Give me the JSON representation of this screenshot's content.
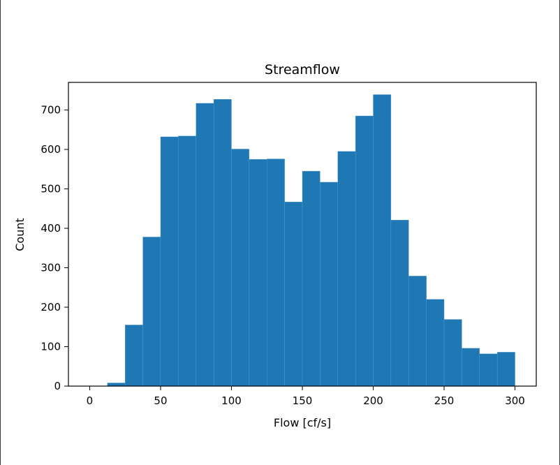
{
  "chart_data": {
    "type": "bar",
    "subtype": "histogram",
    "title": "Streamflow",
    "xlabel": "Flow [cf/s]",
    "ylabel": "Count",
    "xlim": [
      -15,
      315
    ],
    "ylim": [
      0,
      770
    ],
    "xticks": [
      0,
      50,
      100,
      150,
      200,
      250,
      300
    ],
    "yticks": [
      0,
      100,
      200,
      300,
      400,
      500,
      600,
      700
    ],
    "bin_edges": [
      12.5,
      25,
      37.5,
      50,
      62.5,
      75,
      87.5,
      100,
      112.5,
      125,
      137.5,
      150,
      162.5,
      175,
      187.5,
      200,
      212.5,
      225,
      237.5,
      250,
      262.5,
      275,
      287.5,
      300
    ],
    "values": [
      8,
      155,
      378,
      632,
      634,
      717,
      727,
      601,
      575,
      576,
      467,
      545,
      517,
      595,
      685,
      739,
      421,
      279,
      220,
      169,
      96,
      82,
      86
    ],
    "grid": false,
    "legend": false,
    "bar_color": "#1f77b4",
    "edge_color": "#5a9fd4"
  }
}
